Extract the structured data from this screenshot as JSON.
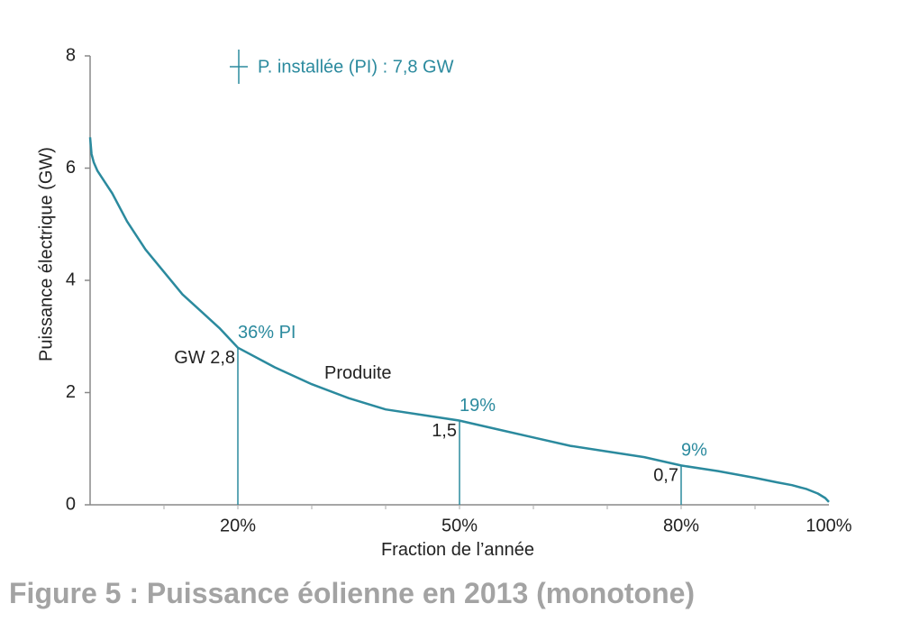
{
  "chart_data": {
    "type": "line",
    "xlabel": "Fraction de l’année",
    "ylabel": "Puissance électrique (GW)",
    "xlim": [
      0,
      100
    ],
    "ylim": [
      0,
      8
    ],
    "x_ticks": [
      {
        "value": 20,
        "label": "20%"
      },
      {
        "value": 50,
        "label": "50%"
      },
      {
        "value": 80,
        "label": "80%"
      },
      {
        "value": 100,
        "label": "100%"
      }
    ],
    "y_ticks": [
      {
        "value": 0,
        "label": "0"
      },
      {
        "value": 2,
        "label": "2"
      },
      {
        "value": 4,
        "label": "4"
      },
      {
        "value": 6,
        "label": "6"
      },
      {
        "value": 8,
        "label": "8"
      }
    ],
    "grid": false,
    "series": [
      {
        "name": "Produite",
        "color": "#2b8a9e",
        "x": [
          0,
          0.2,
          0.5,
          1,
          2,
          3,
          5,
          7.5,
          10,
          12.5,
          15,
          17.5,
          20,
          25,
          30,
          35,
          40,
          45,
          50,
          55,
          60,
          65,
          70,
          75,
          80,
          85,
          90,
          93,
          95,
          97,
          98.5,
          99.5,
          100
        ],
        "y": [
          6.55,
          6.25,
          6.1,
          5.95,
          5.75,
          5.55,
          5.05,
          4.55,
          4.15,
          3.75,
          3.45,
          3.15,
          2.8,
          2.45,
          2.15,
          1.9,
          1.7,
          1.6,
          1.5,
          1.35,
          1.2,
          1.05,
          0.95,
          0.85,
          0.7,
          0.6,
          0.48,
          0.4,
          0.35,
          0.28,
          0.2,
          0.12,
          0.05
        ]
      }
    ],
    "markers": [
      {
        "x": 20,
        "y": 2.8,
        "value_label": "GW 2,8",
        "pct_label": "36% PI"
      },
      {
        "x": 50,
        "y": 1.5,
        "value_label": "1,5",
        "pct_label": "19%"
      },
      {
        "x": 80,
        "y": 0.7,
        "value_label": "0,7",
        "pct_label": "9%"
      }
    ],
    "annotations": {
      "installed_power": "P. installée (PI) : 7,8 GW",
      "curve_label": "Produite"
    }
  },
  "caption": "Figure 5 : Puissance éolienne en 2013 (monotone)"
}
